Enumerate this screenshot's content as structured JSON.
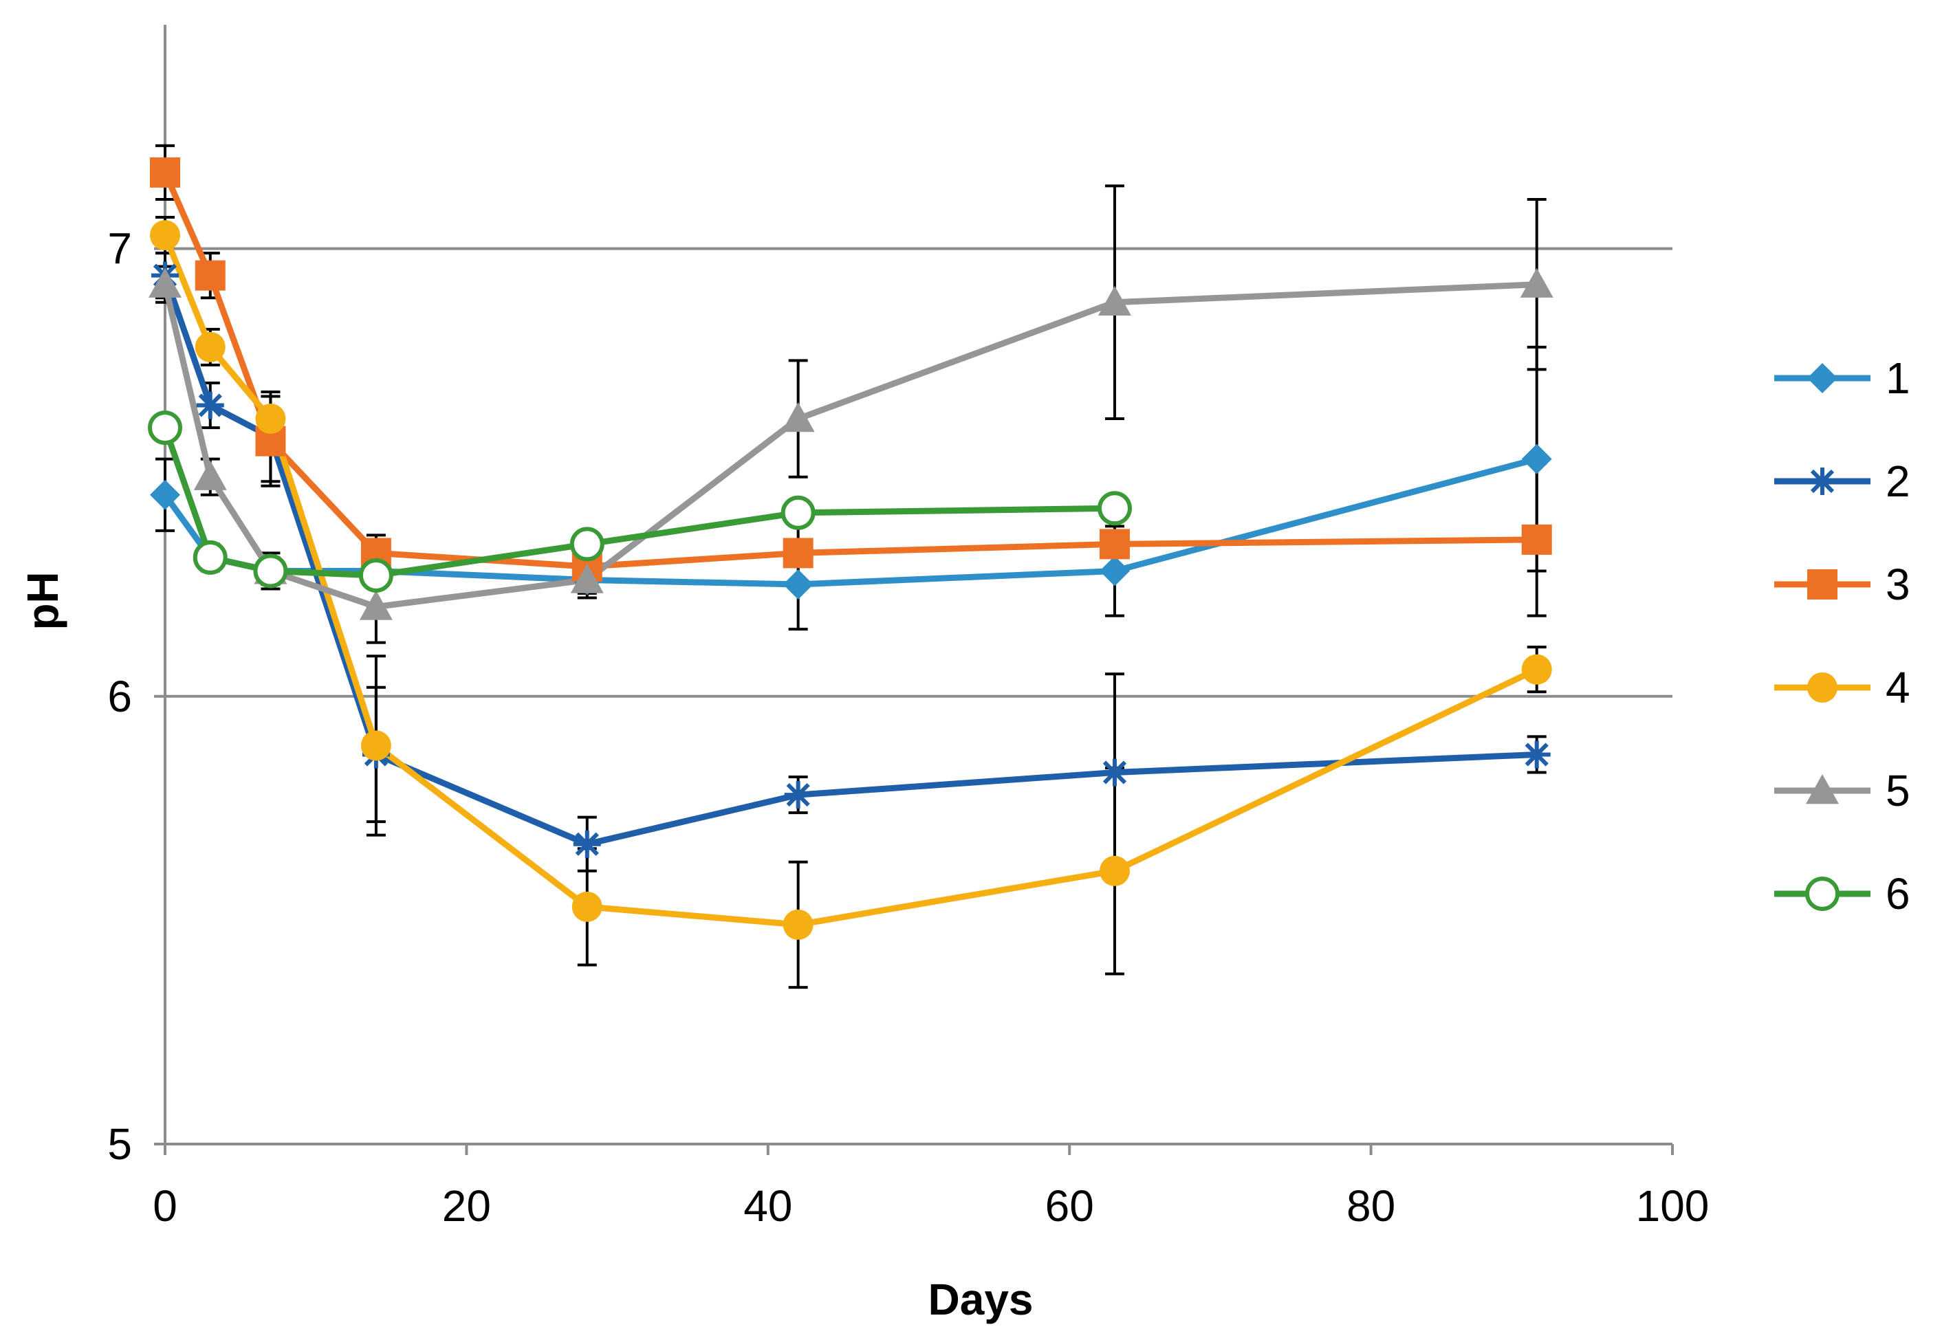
{
  "chart_data": {
    "type": "line",
    "title": "",
    "xlabel": "Days",
    "ylabel": "pH",
    "xlim": [
      0,
      100
    ],
    "ylim": [
      5,
      7.5
    ],
    "xticks": [
      0,
      20,
      40,
      60,
      80,
      100
    ],
    "yticks": [
      5,
      6,
      7
    ],
    "x_tick_labels": [
      "0",
      "20",
      "40",
      "60",
      "80",
      "100"
    ],
    "y_tick_labels": [
      "5",
      "6",
      "7"
    ],
    "grid": "horizontal major gridlines",
    "legend_position": "right",
    "series": [
      {
        "name": "1",
        "color": "#2E8FC9",
        "marker": "diamond",
        "x": [
          0,
          3,
          7,
          14,
          28,
          42,
          63,
          91
        ],
        "y": [
          6.45,
          6.31,
          6.28,
          6.28,
          6.26,
          6.25,
          6.28,
          6.53
        ],
        "err": [
          0.08,
          0.03,
          0.03,
          0.08,
          0.04,
          0.1,
          0.1,
          0.25
        ]
      },
      {
        "name": "2",
        "color": "#1F5FAA",
        "marker": "star",
        "x": [
          0,
          3,
          7,
          14,
          28,
          42,
          63,
          91
        ],
        "y": [
          6.94,
          6.65,
          6.58,
          5.87,
          5.67,
          5.78,
          5.83,
          5.87
        ],
        "err": [
          0.05,
          0.05,
          0.1,
          0.15,
          0.06,
          0.04,
          0.22,
          0.04
        ]
      },
      {
        "name": "3",
        "color": "#ED7125",
        "marker": "square",
        "x": [
          0,
          3,
          7,
          14,
          28,
          42,
          63,
          91
        ],
        "y": [
          7.17,
          6.94,
          6.57,
          6.32,
          6.29,
          6.32,
          6.34,
          6.35
        ],
        "err": [
          0.06,
          0.05,
          0.1,
          0.03,
          0.05,
          0.07,
          0.03,
          0.17
        ]
      },
      {
        "name": "4",
        "color": "#F5AF12",
        "marker": "circle",
        "x": [
          0,
          3,
          7,
          14,
          28,
          42,
          63,
          91
        ],
        "y": [
          7.03,
          6.78,
          6.62,
          5.89,
          5.53,
          5.49,
          5.61,
          6.06
        ],
        "err": [
          0.04,
          0.04,
          0.05,
          0.2,
          0.13,
          0.14,
          0.23,
          0.05
        ]
      },
      {
        "name": "5",
        "color": "#969696",
        "marker": "triangle",
        "x": [
          0,
          3,
          7,
          14,
          28,
          42,
          63,
          91
        ],
        "y": [
          6.92,
          6.49,
          6.28,
          6.2,
          6.26,
          6.62,
          6.88,
          6.92
        ],
        "err": [
          0.04,
          0.04,
          0.04,
          0.08,
          0.03,
          0.13,
          0.26,
          0.19
        ]
      },
      {
        "name": "6",
        "color": "#3A9A35",
        "marker": "open-circle",
        "x": [
          0,
          3,
          7,
          14,
          28,
          42,
          63
        ],
        "y": [
          6.6,
          6.31,
          6.28,
          6.27,
          6.34,
          6.41,
          6.42
        ],
        "err": [
          0.0,
          0.0,
          0.0,
          0.0,
          0.0,
          0.0,
          0.0
        ]
      }
    ]
  }
}
